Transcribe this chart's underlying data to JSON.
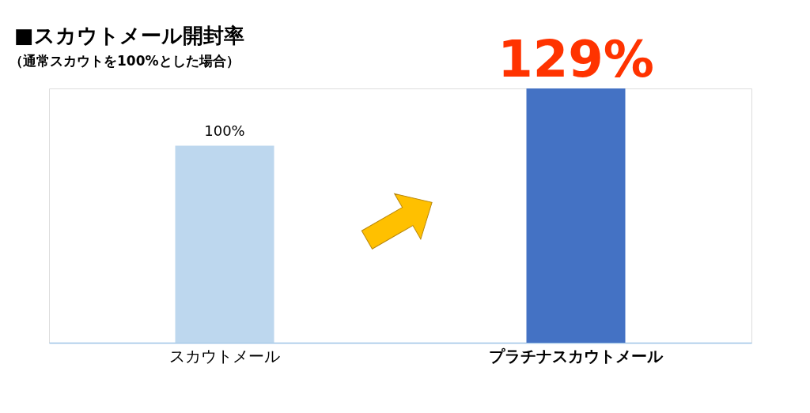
{
  "chart_data": {
    "type": "bar",
    "title": "■スカウトメール開封率",
    "subtitle": "（通常スカウトを100%とした場合）",
    "categories": [
      "スカウトメール",
      "プラチナスカウトメール"
    ],
    "values": [
      100,
      129
    ],
    "colors": [
      "#bdd7ee",
      "#4472c4"
    ],
    "value_labels": [
      "100%",
      "129%"
    ],
    "grid": false
  }
}
